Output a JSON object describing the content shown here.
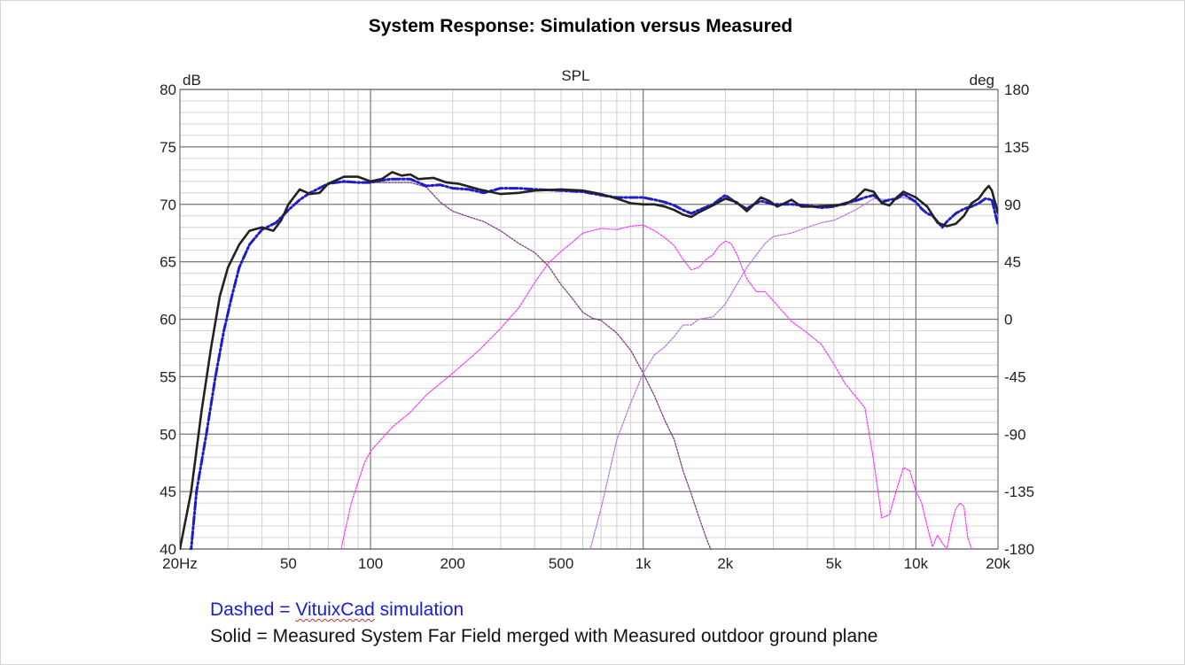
{
  "title": "System Response:  Simulation versus Measured",
  "caption": {
    "dashed_prefix": "Dashed = ",
    "dashed_link": "VituixCad",
    "dashed_suffix": " simulation",
    "solid": "Solid = Measured System Far Field merged with Measured outdoor ground plane"
  },
  "chart_data": {
    "type": "line",
    "title": "SPL",
    "x_scale": "log",
    "xlim": [
      20,
      20000
    ],
    "ylim": [
      40,
      80
    ],
    "y2lim": [
      -180,
      180
    ],
    "ylabel": "dB",
    "y2label": "deg",
    "grid": true,
    "x_tick_values": [
      20,
      50,
      100,
      200,
      500,
      1000,
      2000,
      5000,
      10000,
      20000
    ],
    "x_tick_labels": [
      "20Hz",
      "50",
      "100",
      "200",
      "500",
      "1k",
      "2k",
      "5k",
      "10k",
      "20k"
    ],
    "y_ticks": [
      40,
      45,
      50,
      55,
      60,
      65,
      70,
      75,
      80
    ],
    "y2_ticks": [
      -180,
      -135,
      -90,
      -45,
      0,
      45,
      90,
      135,
      180
    ],
    "colors": {
      "measured": "#222222",
      "simulated": "#1c1cc8",
      "woofer": "#7a2f7a",
      "midrange": "#ff33ff",
      "tweeter": "#b070e0"
    },
    "series": [
      {
        "key": "measured",
        "style": "solid",
        "points": [
          [
            20,
            40
          ],
          [
            22,
            45
          ],
          [
            24,
            52
          ],
          [
            26,
            57.5
          ],
          [
            28,
            62
          ],
          [
            30,
            64.5
          ],
          [
            33,
            66.5
          ],
          [
            36,
            67.7
          ],
          [
            40,
            68
          ],
          [
            44,
            67.7
          ],
          [
            47,
            68.6
          ],
          [
            50,
            70
          ],
          [
            55,
            71.3
          ],
          [
            60,
            70.9
          ],
          [
            65,
            71
          ],
          [
            70,
            71.8
          ],
          [
            80,
            72.4
          ],
          [
            90,
            72.4
          ],
          [
            100,
            72
          ],
          [
            110,
            72.2
          ],
          [
            120,
            72.8
          ],
          [
            130,
            72.5
          ],
          [
            140,
            72.6
          ],
          [
            150,
            72.2
          ],
          [
            170,
            72.3
          ],
          [
            190,
            71.9
          ],
          [
            210,
            71.8
          ],
          [
            250,
            71.3
          ],
          [
            300,
            70.9
          ],
          [
            350,
            71
          ],
          [
            400,
            71.2
          ],
          [
            500,
            71.3
          ],
          [
            600,
            71.2
          ],
          [
            700,
            70.9
          ],
          [
            800,
            70.5
          ],
          [
            900,
            70.1
          ],
          [
            1000,
            70
          ],
          [
            1100,
            70
          ],
          [
            1200,
            69.8
          ],
          [
            1300,
            69.5
          ],
          [
            1400,
            69.1
          ],
          [
            1500,
            68.9
          ],
          [
            1600,
            69.3
          ],
          [
            1800,
            69.9
          ],
          [
            2000,
            70.5
          ],
          [
            2200,
            70.2
          ],
          [
            2400,
            69.4
          ],
          [
            2500,
            69.8
          ],
          [
            2700,
            70.6
          ],
          [
            2900,
            70.3
          ],
          [
            3100,
            69.8
          ],
          [
            3300,
            70.1
          ],
          [
            3500,
            70.4
          ],
          [
            3800,
            69.8
          ],
          [
            4200,
            69.8
          ],
          [
            5000,
            69.9
          ],
          [
            5500,
            70
          ],
          [
            6000,
            70.5
          ],
          [
            6500,
            71.3
          ],
          [
            7000,
            71.1
          ],
          [
            7500,
            70.1
          ],
          [
            8000,
            69.9
          ],
          [
            8500,
            70.6
          ],
          [
            9000,
            71.1
          ],
          [
            10000,
            70.6
          ],
          [
            11000,
            69.8
          ],
          [
            12000,
            68.4
          ],
          [
            13000,
            68.1
          ],
          [
            14000,
            68.3
          ],
          [
            15000,
            69
          ],
          [
            16000,
            70.1
          ],
          [
            17000,
            70.5
          ],
          [
            18000,
            71.3
          ],
          [
            18500,
            71.6
          ],
          [
            19000,
            71.2
          ],
          [
            20000,
            69.2
          ]
        ]
      },
      {
        "key": "simulated",
        "style": "dashdot",
        "points": [
          [
            20,
            38.5
          ],
          [
            22,
            40
          ],
          [
            23,
            45
          ],
          [
            25,
            50
          ],
          [
            27,
            55
          ],
          [
            29,
            59
          ],
          [
            31,
            62
          ],
          [
            33,
            64.5
          ],
          [
            36,
            66.5
          ],
          [
            40,
            67.8
          ],
          [
            45,
            68.4
          ],
          [
            50,
            69.5
          ],
          [
            55,
            70.4
          ],
          [
            60,
            71
          ],
          [
            70,
            71.8
          ],
          [
            80,
            72
          ],
          [
            90,
            71.9
          ],
          [
            100,
            71.9
          ],
          [
            110,
            72.1
          ],
          [
            120,
            72.2
          ],
          [
            140,
            72.2
          ],
          [
            160,
            71.6
          ],
          [
            180,
            71.7
          ],
          [
            200,
            71.4
          ],
          [
            230,
            71.3
          ],
          [
            260,
            71
          ],
          [
            300,
            71.4
          ],
          [
            350,
            71.4
          ],
          [
            400,
            71.3
          ],
          [
            500,
            71.2
          ],
          [
            600,
            71.1
          ],
          [
            700,
            70.8
          ],
          [
            800,
            70.6
          ],
          [
            900,
            70.6
          ],
          [
            1000,
            70.6
          ],
          [
            1100,
            70.4
          ],
          [
            1200,
            70.2
          ],
          [
            1300,
            69.9
          ],
          [
            1400,
            69.5
          ],
          [
            1500,
            69.2
          ],
          [
            1600,
            69.5
          ],
          [
            1800,
            70
          ],
          [
            2000,
            70.8
          ],
          [
            2200,
            70.1
          ],
          [
            2400,
            69.6
          ],
          [
            2500,
            69.9
          ],
          [
            2700,
            70.3
          ],
          [
            3000,
            70
          ],
          [
            3500,
            70
          ],
          [
            4000,
            69.9
          ],
          [
            4500,
            69.7
          ],
          [
            5000,
            69.8
          ],
          [
            5500,
            70.1
          ],
          [
            6000,
            70.3
          ],
          [
            6500,
            70.6
          ],
          [
            7000,
            70.8
          ],
          [
            7500,
            70.2
          ],
          [
            8000,
            70.4
          ],
          [
            8500,
            70.5
          ],
          [
            9000,
            70.9
          ],
          [
            10000,
            70.2
          ],
          [
            10500,
            69.6
          ],
          [
            11000,
            69.2
          ],
          [
            11500,
            69
          ],
          [
            12000,
            68.5
          ],
          [
            12500,
            68
          ],
          [
            13000,
            68.5
          ],
          [
            14000,
            69.2
          ],
          [
            15000,
            69.6
          ],
          [
            16000,
            69.8
          ],
          [
            17000,
            70.1
          ],
          [
            18000,
            70.5
          ],
          [
            19000,
            70.4
          ],
          [
            20000,
            68.2
          ]
        ]
      },
      {
        "key": "woofer",
        "style": "thin",
        "points": [
          [
            20,
            38.5
          ],
          [
            22,
            40
          ],
          [
            23,
            45
          ],
          [
            25,
            50
          ],
          [
            27,
            55
          ],
          [
            29,
            59
          ],
          [
            31,
            62
          ],
          [
            33,
            64.5
          ],
          [
            36,
            66.5
          ],
          [
            40,
            67.8
          ],
          [
            45,
            68.4
          ],
          [
            50,
            69.5
          ],
          [
            55,
            70.4
          ],
          [
            60,
            71
          ],
          [
            70,
            71.8
          ],
          [
            80,
            71.9
          ],
          [
            100,
            71.9
          ],
          [
            120,
            71.9
          ],
          [
            140,
            71.9
          ],
          [
            160,
            71.5
          ],
          [
            180,
            70.2
          ],
          [
            200,
            69.4
          ],
          [
            230,
            68.9
          ],
          [
            260,
            68.5
          ],
          [
            300,
            67.7
          ],
          [
            350,
            66.6
          ],
          [
            400,
            65.8
          ],
          [
            450,
            64.6
          ],
          [
            500,
            63
          ],
          [
            550,
            61.8
          ],
          [
            600,
            60.6
          ],
          [
            650,
            60.1
          ],
          [
            700,
            59.9
          ],
          [
            800,
            58.8
          ],
          [
            900,
            57.3
          ],
          [
            1000,
            55.3
          ],
          [
            1100,
            53.3
          ],
          [
            1200,
            51.2
          ],
          [
            1300,
            49.5
          ],
          [
            1400,
            46.8
          ],
          [
            1500,
            44.8
          ],
          [
            1600,
            42.8
          ],
          [
            1700,
            41
          ],
          [
            1800,
            39.5
          ]
        ]
      },
      {
        "key": "midrange",
        "style": "thin",
        "points": [
          [
            78,
            40
          ],
          [
            85,
            44
          ],
          [
            95,
            47.5
          ],
          [
            100,
            48.5
          ],
          [
            120,
            50.6
          ],
          [
            140,
            51.9
          ],
          [
            160,
            53.4
          ],
          [
            200,
            55.3
          ],
          [
            250,
            57.3
          ],
          [
            300,
            59.2
          ],
          [
            350,
            61
          ],
          [
            400,
            63.2
          ],
          [
            450,
            64.9
          ],
          [
            500,
            65.9
          ],
          [
            550,
            66.7
          ],
          [
            600,
            67.5
          ],
          [
            700,
            67.9
          ],
          [
            800,
            67.8
          ],
          [
            900,
            68.1
          ],
          [
            1000,
            68.2
          ],
          [
            1100,
            67.7
          ],
          [
            1200,
            67.1
          ],
          [
            1300,
            66.4
          ],
          [
            1400,
            65.2
          ],
          [
            1500,
            64.3
          ],
          [
            1600,
            64.5
          ],
          [
            1700,
            65.2
          ],
          [
            1800,
            65.6
          ],
          [
            1900,
            66.4
          ],
          [
            2000,
            66.8
          ],
          [
            2100,
            66.6
          ],
          [
            2200,
            65.7
          ],
          [
            2400,
            63.5
          ],
          [
            2600,
            62.4
          ],
          [
            2800,
            62.4
          ],
          [
            3000,
            61.6
          ],
          [
            3500,
            59.8
          ],
          [
            4000,
            58.8
          ],
          [
            4500,
            57.8
          ],
          [
            5000,
            56.1
          ],
          [
            5500,
            54.4
          ],
          [
            6000,
            53.3
          ],
          [
            6500,
            52.3
          ],
          [
            7000,
            47.7
          ],
          [
            7500,
            42.7
          ],
          [
            8000,
            43
          ],
          [
            8500,
            45.2
          ],
          [
            9000,
            47.1
          ],
          [
            9500,
            46.8
          ],
          [
            10000,
            45
          ],
          [
            10500,
            44
          ],
          [
            11000,
            42
          ],
          [
            11500,
            40.2
          ],
          [
            12000,
            41.2
          ],
          [
            12500,
            40.5
          ],
          [
            13000,
            40
          ],
          [
            13500,
            42.1
          ],
          [
            14000,
            43.5
          ],
          [
            14500,
            44
          ],
          [
            15000,
            43.7
          ],
          [
            15500,
            41
          ],
          [
            16000,
            40
          ]
        ]
      },
      {
        "key": "tweeter",
        "style": "thin",
        "points": [
          [
            640,
            40
          ],
          [
            700,
            43.5
          ],
          [
            800,
            49.5
          ],
          [
            900,
            52.7
          ],
          [
            1000,
            55.3
          ],
          [
            1100,
            56.9
          ],
          [
            1200,
            57.6
          ],
          [
            1300,
            58.5
          ],
          [
            1400,
            59.5
          ],
          [
            1500,
            59.5
          ],
          [
            1600,
            60
          ],
          [
            1800,
            60.2
          ],
          [
            2000,
            61.3
          ],
          [
            2200,
            63
          ],
          [
            2400,
            64.5
          ],
          [
            2600,
            65.6
          ],
          [
            2800,
            66.6
          ],
          [
            3000,
            67.2
          ],
          [
            3500,
            67.5
          ],
          [
            4000,
            68
          ],
          [
            4500,
            68.4
          ],
          [
            5000,
            68.6
          ],
          [
            6000,
            69.5
          ],
          [
            7000,
            70.5
          ],
          [
            8000,
            70.4
          ],
          [
            9000,
            70.6
          ],
          [
            10000,
            70.2
          ],
          [
            10500,
            69.6
          ],
          [
            11000,
            69.2
          ],
          [
            11500,
            69
          ],
          [
            12000,
            68.5
          ],
          [
            12500,
            68
          ],
          [
            13000,
            68.5
          ],
          [
            14000,
            69.2
          ],
          [
            15000,
            69.6
          ],
          [
            16000,
            69.8
          ],
          [
            17000,
            70.1
          ],
          [
            18000,
            70.5
          ],
          [
            19000,
            70.4
          ],
          [
            20000,
            68.2
          ]
        ]
      }
    ]
  }
}
